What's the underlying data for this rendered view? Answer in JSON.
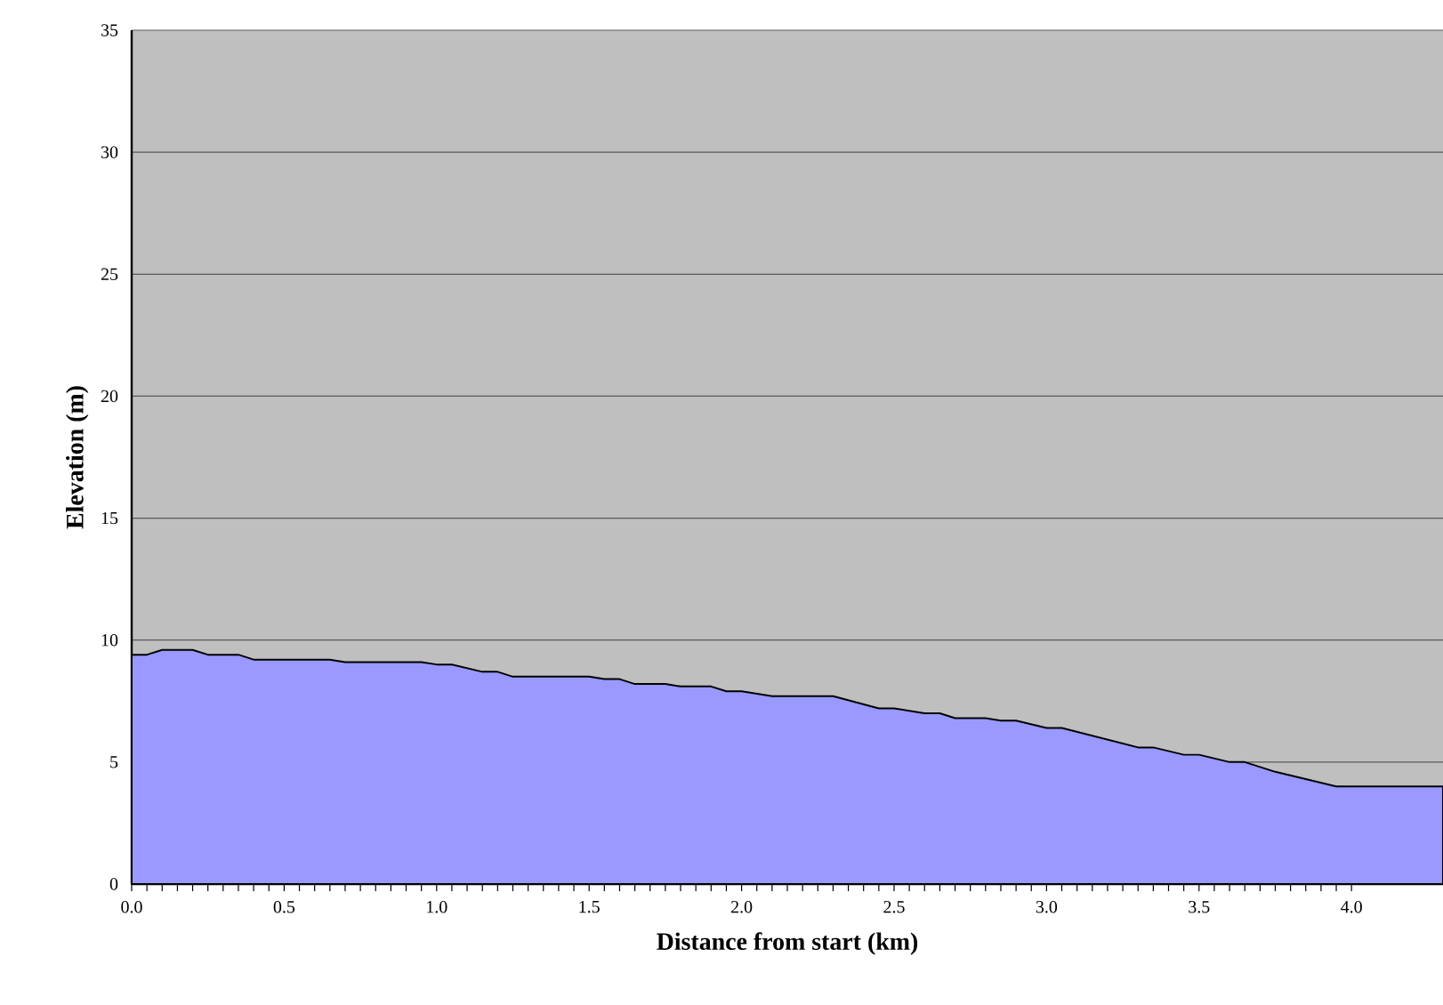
{
  "chart_data": {
    "type": "area",
    "xlabel": "Distance from start (km)",
    "ylabel": "Elevation (m)",
    "xlim": [
      0,
      4.3
    ],
    "xticks": [
      {
        "value": 0,
        "label": "0.0"
      },
      {
        "value": 0.5,
        "label": "0.5"
      },
      {
        "value": 1,
        "label": "1.0"
      },
      {
        "value": 1.5,
        "label": "1.5"
      },
      {
        "value": 2,
        "label": "2.0"
      },
      {
        "value": 2.5,
        "label": "2.5"
      },
      {
        "value": 3,
        "label": "3.0"
      },
      {
        "value": 3.5,
        "label": "3.5"
      },
      {
        "value": 4,
        "label": "4.0"
      }
    ],
    "ylim": [
      0,
      35
    ],
    "yticks": [
      0,
      5,
      10,
      15,
      20,
      25,
      30,
      35
    ],
    "grid": "y",
    "series": [
      {
        "color": "#9999ff",
        "x": [
          0,
          0.05,
          0.1,
          0.2,
          0.25,
          0.35,
          0.4,
          0.65,
          0.7,
          0.95,
          1.0,
          1.05,
          1.15,
          1.2,
          1.25,
          1.5,
          1.55,
          1.6,
          1.65,
          1.75,
          1.8,
          1.9,
          1.95,
          2.0,
          2.1,
          2.3,
          2.45,
          2.5,
          2.6,
          2.65,
          2.7,
          2.8,
          2.85,
          2.9,
          3.0,
          3.05,
          3.3,
          3.35,
          3.45,
          3.5,
          3.6,
          3.65,
          3.75,
          3.95,
          4.3
        ],
        "values": [
          9.4,
          9.4,
          9.6,
          9.6,
          9.4,
          9.4,
          9.2,
          9.2,
          9.1,
          9.1,
          9.0,
          9.0,
          8.7,
          8.7,
          8.5,
          8.5,
          8.4,
          8.4,
          8.2,
          8.2,
          8.1,
          8.1,
          7.9,
          7.9,
          7.7,
          7.7,
          7.2,
          7.2,
          7.0,
          7.0,
          6.8,
          6.8,
          6.7,
          6.7,
          6.4,
          6.4,
          5.6,
          5.6,
          5.3,
          5.3,
          5.0,
          5.0,
          4.6,
          4.0,
          4.0
        ]
      }
    ]
  }
}
